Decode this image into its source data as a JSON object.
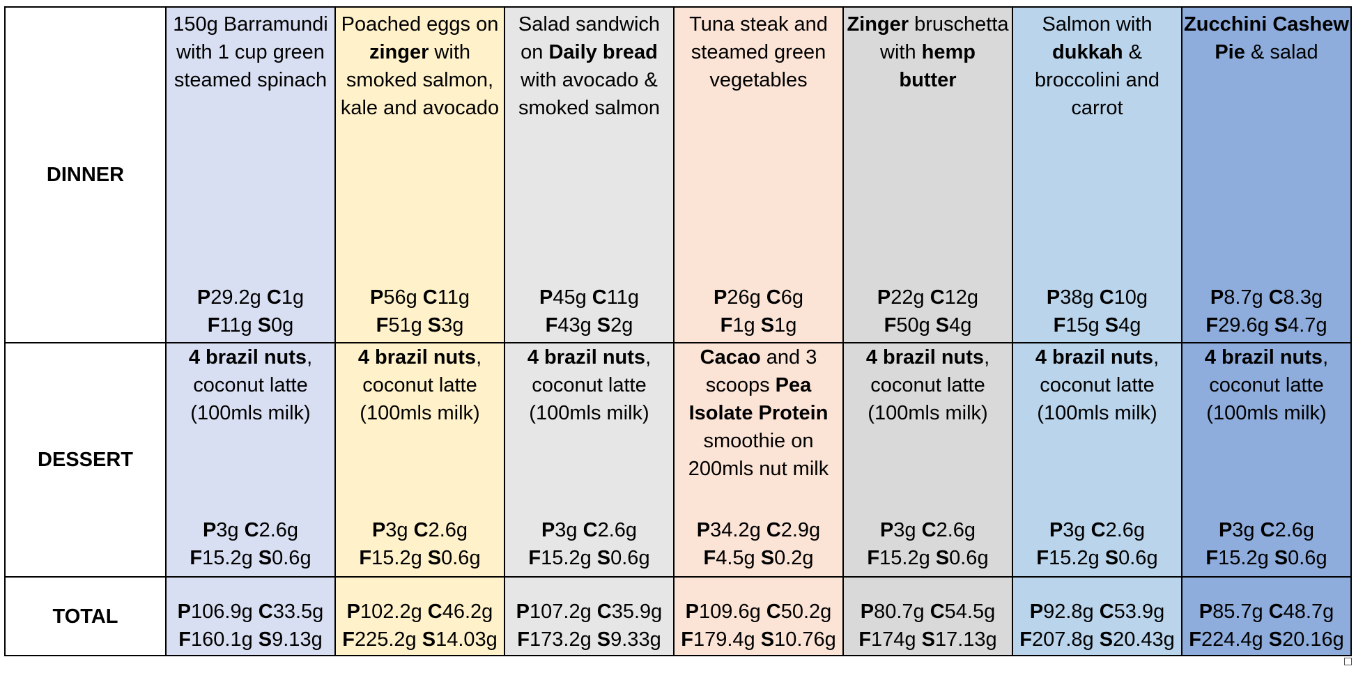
{
  "colors": {
    "col1": "#d9dff2",
    "col2": "#fff1c9",
    "col3": "#e6e6e6",
    "col4": "#fbe3d6",
    "col5": "#d9d9d9",
    "col6": "#bad4ec",
    "col7": "#8eacdc",
    "label_bg": "#ffffff",
    "border": "#000000"
  },
  "rows": {
    "dinner": "DINNER",
    "dessert": "DESSERT",
    "total": "TOTAL"
  },
  "columns": [
    {
      "dinner": {
        "desc": [
          [
            {
              "t": "150g Barramundi",
              "b": false
            }
          ],
          [
            {
              "t": "with 1 cup green",
              "b": false
            }
          ],
          [
            {
              "t": "steamed spinach",
              "b": false
            }
          ]
        ],
        "macros": {
          "P": "29.2g",
          "C": "1g",
          "F": "11g",
          "S": "0g"
        }
      },
      "dessert": {
        "desc": [
          [
            {
              "t": "4 brazil nuts",
              "b": true
            },
            {
              "t": ",",
              "b": false
            }
          ],
          [
            {
              "t": "coconut latte",
              "b": false
            }
          ],
          [
            {
              "t": "(100mls milk)",
              "b": false
            }
          ]
        ],
        "macros": {
          "P": "3g",
          "C": "2.6g",
          "F": "15.2g",
          "S": "0.6g"
        }
      },
      "total": {
        "P": "106.9g",
        "C": "33.5g",
        "F": "160.1g",
        "S": "9.13g"
      }
    },
    {
      "dinner": {
        "desc": [
          [
            {
              "t": "Poached eggs on",
              "b": false
            }
          ],
          [
            {
              "t": "zinger",
              "b": true
            },
            {
              "t": " with",
              "b": false
            }
          ],
          [
            {
              "t": "smoked salmon,",
              "b": false
            }
          ],
          [
            {
              "t": "kale and avocado",
              "b": false
            }
          ]
        ],
        "macros": {
          "P": "56g",
          "C": "11g",
          "F": "51g",
          "S": "3g"
        }
      },
      "dessert": {
        "desc": [
          [
            {
              "t": "4 brazil nuts",
              "b": true
            },
            {
              "t": ",",
              "b": false
            }
          ],
          [
            {
              "t": "coconut latte",
              "b": false
            }
          ],
          [
            {
              "t": "(100mls milk)",
              "b": false
            }
          ]
        ],
        "macros": {
          "P": "3g",
          "C": "2.6g",
          "F": "15.2g",
          "S": "0.6g"
        }
      },
      "total": {
        "P": "102.2g",
        "C": "46.2g",
        "F": "225.2g",
        "S": "14.03g"
      }
    },
    {
      "dinner": {
        "desc": [
          [
            {
              "t": "Salad sandwich",
              "b": false
            }
          ],
          [
            {
              "t": "on ",
              "b": false
            },
            {
              "t": "Daily bread",
              "b": true
            }
          ],
          [
            {
              "t": "with avocado &",
              "b": false
            }
          ],
          [
            {
              "t": "smoked salmon",
              "b": false
            }
          ]
        ],
        "macros": {
          "P": "45g",
          "C": "11g",
          "F": "43g",
          "S": "2g"
        }
      },
      "dessert": {
        "desc": [
          [
            {
              "t": "4 brazil nuts",
              "b": true
            },
            {
              "t": ",",
              "b": false
            }
          ],
          [
            {
              "t": "coconut latte",
              "b": false
            }
          ],
          [
            {
              "t": "(100mls milk)",
              "b": false
            }
          ]
        ],
        "macros": {
          "P": "3g",
          "C": "2.6g",
          "F": "15.2g",
          "S": "0.6g"
        }
      },
      "total": {
        "P": "107.2g",
        "C": "35.9g",
        "F": "173.2g",
        "S": "9.33g"
      }
    },
    {
      "dinner": {
        "desc": [
          [
            {
              "t": "Tuna steak and",
              "b": false
            }
          ],
          [
            {
              "t": "steamed green",
              "b": false
            }
          ],
          [
            {
              "t": "vegetables",
              "b": false
            }
          ]
        ],
        "macros": {
          "P": "26g",
          "C": "6g",
          "F": "1g",
          "S": "1g"
        }
      },
      "dessert": {
        "desc": [
          [
            {
              "t": "Cacao",
              "b": true
            },
            {
              "t": " and 3",
              "b": false
            }
          ],
          [
            {
              "t": "scoops ",
              "b": false
            },
            {
              "t": "Pea",
              "b": true
            }
          ],
          [
            {
              "t": "Isolate Protein",
              "b": true
            }
          ],
          [
            {
              "t": "smoothie on",
              "b": false
            }
          ],
          [
            {
              "t": "200mls nut milk",
              "b": false
            }
          ]
        ],
        "macros": {
          "P": "34.2g",
          "C": "2.9g",
          "F": "4.5g",
          "S": "0.2g"
        }
      },
      "total": {
        "P": "109.6g",
        "C": "50.2g",
        "F": "179.4g",
        "S": "10.76g"
      }
    },
    {
      "dinner": {
        "desc": [
          [
            {
              "t": "Zinger",
              "b": true
            },
            {
              "t": " bruschetta",
              "b": false
            }
          ],
          [
            {
              "t": "with ",
              "b": false
            },
            {
              "t": "hemp",
              "b": true
            }
          ],
          [
            {
              "t": "butter",
              "b": true
            }
          ]
        ],
        "macros": {
          "P": "22g",
          "C": "12g",
          "F": "50g",
          "S": "4g"
        }
      },
      "dessert": {
        "desc": [
          [
            {
              "t": "4 brazil nuts",
              "b": true
            },
            {
              "t": ",",
              "b": false
            }
          ],
          [
            {
              "t": "coconut latte",
              "b": false
            }
          ],
          [
            {
              "t": "(100mls milk)",
              "b": false
            }
          ]
        ],
        "macros": {
          "P": "3g",
          "C": "2.6g",
          "F": "15.2g",
          "S": "0.6g"
        }
      },
      "total": {
        "P": "80.7g",
        "C": "54.5g",
        "F": "174g",
        "S": "17.13g"
      }
    },
    {
      "dinner": {
        "desc": [
          [
            {
              "t": "Salmon with",
              "b": false
            }
          ],
          [
            {
              "t": "dukkah",
              "b": true
            },
            {
              "t": " &",
              "b": false
            }
          ],
          [
            {
              "t": "broccolini and",
              "b": false
            }
          ],
          [
            {
              "t": "carrot",
              "b": false
            }
          ]
        ],
        "macros": {
          "P": "38g",
          "C": "10g",
          "F": "15g",
          "S": "4g"
        }
      },
      "dessert": {
        "desc": [
          [
            {
              "t": "4 brazil nuts",
              "b": true
            },
            {
              "t": ",",
              "b": false
            }
          ],
          [
            {
              "t": "coconut latte",
              "b": false
            }
          ],
          [
            {
              "t": "(100mls milk)",
              "b": false
            }
          ]
        ],
        "macros": {
          "P": "3g",
          "C": "2.6g",
          "F": "15.2g",
          "S": "0.6g"
        }
      },
      "total": {
        "P": "92.8g",
        "C": "53.9g",
        "F": "207.8g",
        "S": "20.43g"
      }
    },
    {
      "dinner": {
        "desc": [
          [
            {
              "t": "Zucchini Cashew",
              "b": true
            }
          ],
          [
            {
              "t": "Pie",
              "b": true
            },
            {
              "t": " & salad",
              "b": false
            }
          ]
        ],
        "macros": {
          "P": "8.7g",
          "C": "8.3g",
          "F": "29.6g",
          "S": "4.7g"
        }
      },
      "dessert": {
        "desc": [
          [
            {
              "t": "4 brazil nuts",
              "b": true
            },
            {
              "t": ",",
              "b": false
            }
          ],
          [
            {
              "t": "coconut latte",
              "b": false
            }
          ],
          [
            {
              "t": "(100mls milk)",
              "b": false
            }
          ]
        ],
        "macros": {
          "P": "3g",
          "C": "2.6g",
          "F": "15.2g",
          "S": "0.6g"
        }
      },
      "total": {
        "P": "85.7g",
        "C": "48.7g",
        "F": "224.4g",
        "S": "20.16g"
      }
    }
  ]
}
